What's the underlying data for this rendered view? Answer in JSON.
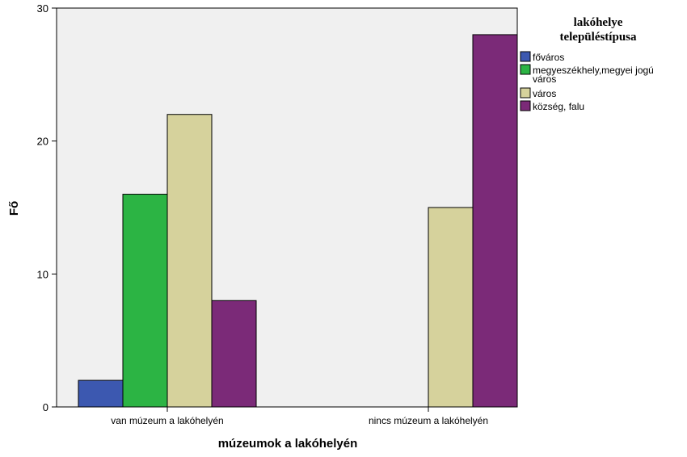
{
  "chart_data": {
    "type": "bar",
    "xlabel": "múzeumok a lakóhelyén",
    "ylabel": "Fő",
    "ylim": [
      0,
      30
    ],
    "yticks": [
      0,
      10,
      20,
      30
    ],
    "grid": false,
    "legend_position": "right",
    "categories": [
      "van múzeum a lakóhelyén",
      "nincs múzeum a lakóhelyén"
    ],
    "legend_title": [
      "lakóhelye",
      "településtípusa"
    ],
    "series": [
      {
        "name": "főváros",
        "name_lines": [
          "főváros"
        ],
        "color": "#3c58b0",
        "values": [
          2,
          0
        ]
      },
      {
        "name": "megyeszékhely,megyei jogú város",
        "name_lines": [
          "megyeszékhely,megyei jogú",
          "város"
        ],
        "color": "#2cb444",
        "values": [
          16,
          0
        ]
      },
      {
        "name": "város",
        "name_lines": [
          "város"
        ],
        "color": "#d6d29c",
        "values": [
          22,
          15
        ]
      },
      {
        "name": "község, falu",
        "name_lines": [
          "község, falu"
        ],
        "color": "#7b2a78",
        "values": [
          8,
          28
        ]
      }
    ],
    "plot_background": "#f0f0f0"
  }
}
